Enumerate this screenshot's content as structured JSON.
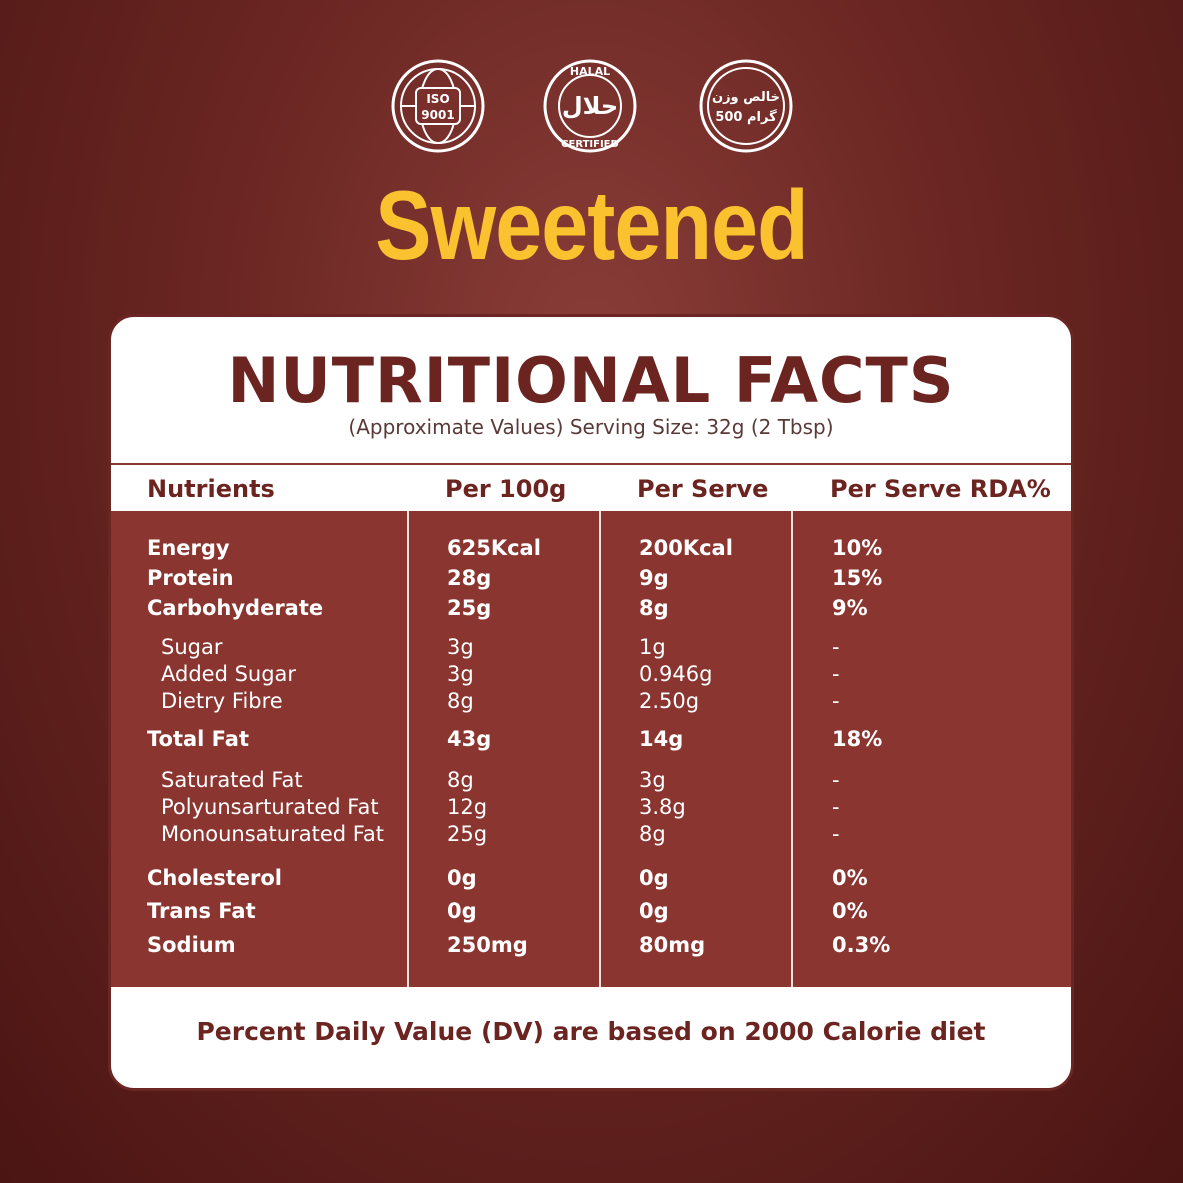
{
  "badges": {
    "iso": {
      "line1": "ISO",
      "line2": "9001"
    },
    "halal": {
      "top": "HALAL",
      "arabic": "حلال",
      "bottom": "CERTIFIED"
    },
    "weight": {
      "line1": "خالص وزن",
      "line2": "500 گرام"
    }
  },
  "headline": "Sweetened",
  "card": {
    "title": "NUTRITIONAL FACTS",
    "subtitle": "(Approximate Values) Serving Size: 32g (2 Tbsp)",
    "headers": [
      "Nutrients",
      "Per 100g",
      "Per Serve",
      "Per Serve RDA%"
    ],
    "rows": [
      {
        "name": "Energy",
        "per100": "625Kcal",
        "serve": "200Kcal",
        "rda": "10%",
        "type": "main"
      },
      {
        "name": "Protein",
        "per100": "28g",
        "serve": "9g",
        "rda": "15%",
        "type": "main"
      },
      {
        "name": "Carbohyderate",
        "per100": "25g",
        "serve": "8g",
        "rda": "9%",
        "type": "main"
      },
      {
        "name": "Sugar",
        "per100": "3g",
        "serve": "1g",
        "rda": "-",
        "type": "sub"
      },
      {
        "name": "Added Sugar",
        "per100": "3g",
        "serve": "0.946g",
        "rda": "-",
        "type": "sub"
      },
      {
        "name": "Dietry Fibre",
        "per100": "8g",
        "serve": "2.50g",
        "rda": "-",
        "type": "sub"
      },
      {
        "name": "Total Fat",
        "per100": "43g",
        "serve": "14g",
        "rda": "18%",
        "type": "main"
      },
      {
        "name": "Saturated Fat",
        "per100": "8g",
        "serve": "3g",
        "rda": "-",
        "type": "sub"
      },
      {
        "name": "Polyunsarturated Fat",
        "per100": "12g",
        "serve": "3.8g",
        "rda": "-",
        "type": "sub"
      },
      {
        "name": "Monounsaturated Fat",
        "per100": "25g",
        "serve": "8g",
        "rda": "-",
        "type": "sub"
      },
      {
        "name": "Cholesterol",
        "per100": "0g",
        "serve": "0g",
        "rda": "0%",
        "type": "main"
      },
      {
        "name": "Trans Fat",
        "per100": "0g",
        "serve": "0g",
        "rda": "0%",
        "type": "main"
      },
      {
        "name": "Sodium",
        "per100": "250mg",
        "serve": "80mg",
        "rda": "0.3%",
        "type": "main"
      }
    ],
    "footnote": "Percent Daily Value (DV) are based on 2000 Calorie diet"
  },
  "colors": {
    "background": "#6a2622",
    "accent_yellow": "#f9c22e",
    "table_body": "#8a3530",
    "title_text": "#6b2420"
  }
}
